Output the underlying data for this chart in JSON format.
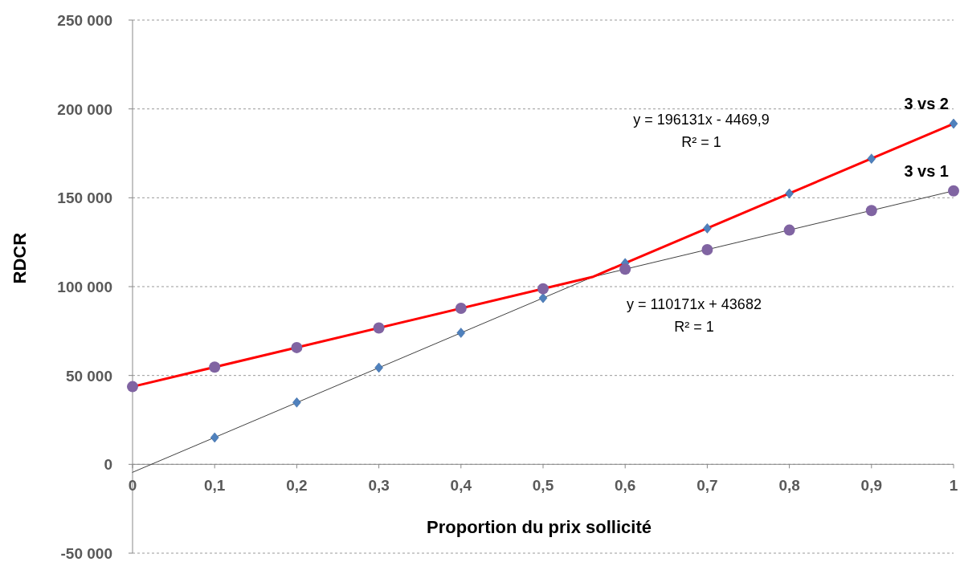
{
  "chart_data": {
    "type": "scatter",
    "xlabel": "Proportion du prix sollicité",
    "ylabel": "RDCR",
    "xlim": [
      0,
      1
    ],
    "xticks": [
      {
        "value": 0,
        "label": "0"
      },
      {
        "value": 0.1,
        "label": "0,1"
      },
      {
        "value": 0.2,
        "label": "0,2"
      },
      {
        "value": 0.3,
        "label": "0,3"
      },
      {
        "value": 0.4,
        "label": "0,4"
      },
      {
        "value": 0.5,
        "label": "0,5"
      },
      {
        "value": 0.6,
        "label": "0,6"
      },
      {
        "value": 0.7,
        "label": "0,7"
      },
      {
        "value": 0.8,
        "label": "0,8"
      },
      {
        "value": 0.9,
        "label": "0,9"
      },
      {
        "value": 1,
        "label": "1"
      }
    ],
    "ylim": [
      -50000,
      250000
    ],
    "yticks": [
      {
        "value": -50000,
        "label": "-50 000"
      },
      {
        "value": 0,
        "label": "0"
      },
      {
        "value": 50000,
        "label": "50 000"
      },
      {
        "value": 100000,
        "label": "100 000"
      },
      {
        "value": 150000,
        "label": "150 000"
      },
      {
        "value": 200000,
        "label": "200 000"
      },
      {
        "value": 250000,
        "label": "250 000"
      }
    ],
    "grid": "y",
    "legend": false,
    "series": [
      {
        "type": "line",
        "color": "#404040",
        "marker": "none",
        "line_style": "solid",
        "x": [
          0,
          1
        ],
        "values": [
          -4500,
          191700
        ]
      },
      {
        "type": "line",
        "color": "#404040",
        "marker": "none",
        "line_style": "solid",
        "x": [
          0,
          1
        ],
        "values": [
          43700,
          153900
        ]
      },
      {
        "type": "line",
        "color": "#ff0000",
        "marker": "none",
        "line_style": "solid",
        "x": [
          0,
          0.56,
          1
        ],
        "values": [
          43700,
          105400,
          191700
        ]
      },
      {
        "name": "3 vs 2",
        "color": "#4f81bd",
        "marker": "diamond",
        "x": [
          0.1,
          0.2,
          0.3,
          0.4,
          0.5,
          0.6,
          0.7,
          0.8,
          0.9,
          1
        ],
        "values": [
          15100,
          34800,
          54400,
          74000,
          93600,
          113200,
          132800,
          152400,
          172000,
          191700
        ]
      },
      {
        "name": "3 vs 1",
        "color": "#8064a2",
        "marker": "circle",
        "x": [
          0,
          0.1,
          0.2,
          0.3,
          0.4,
          0.5,
          0.6,
          0.7,
          0.8,
          0.9,
          1
        ],
        "values": [
          43700,
          54700,
          65700,
          76700,
          87800,
          98800,
          109800,
          120800,
          131800,
          142800,
          153900
        ]
      }
    ],
    "annotations": [
      "y = 196131x - 4469,9",
      "R² = 1",
      "y = 110171x + 43682",
      "R² = 1"
    ]
  }
}
